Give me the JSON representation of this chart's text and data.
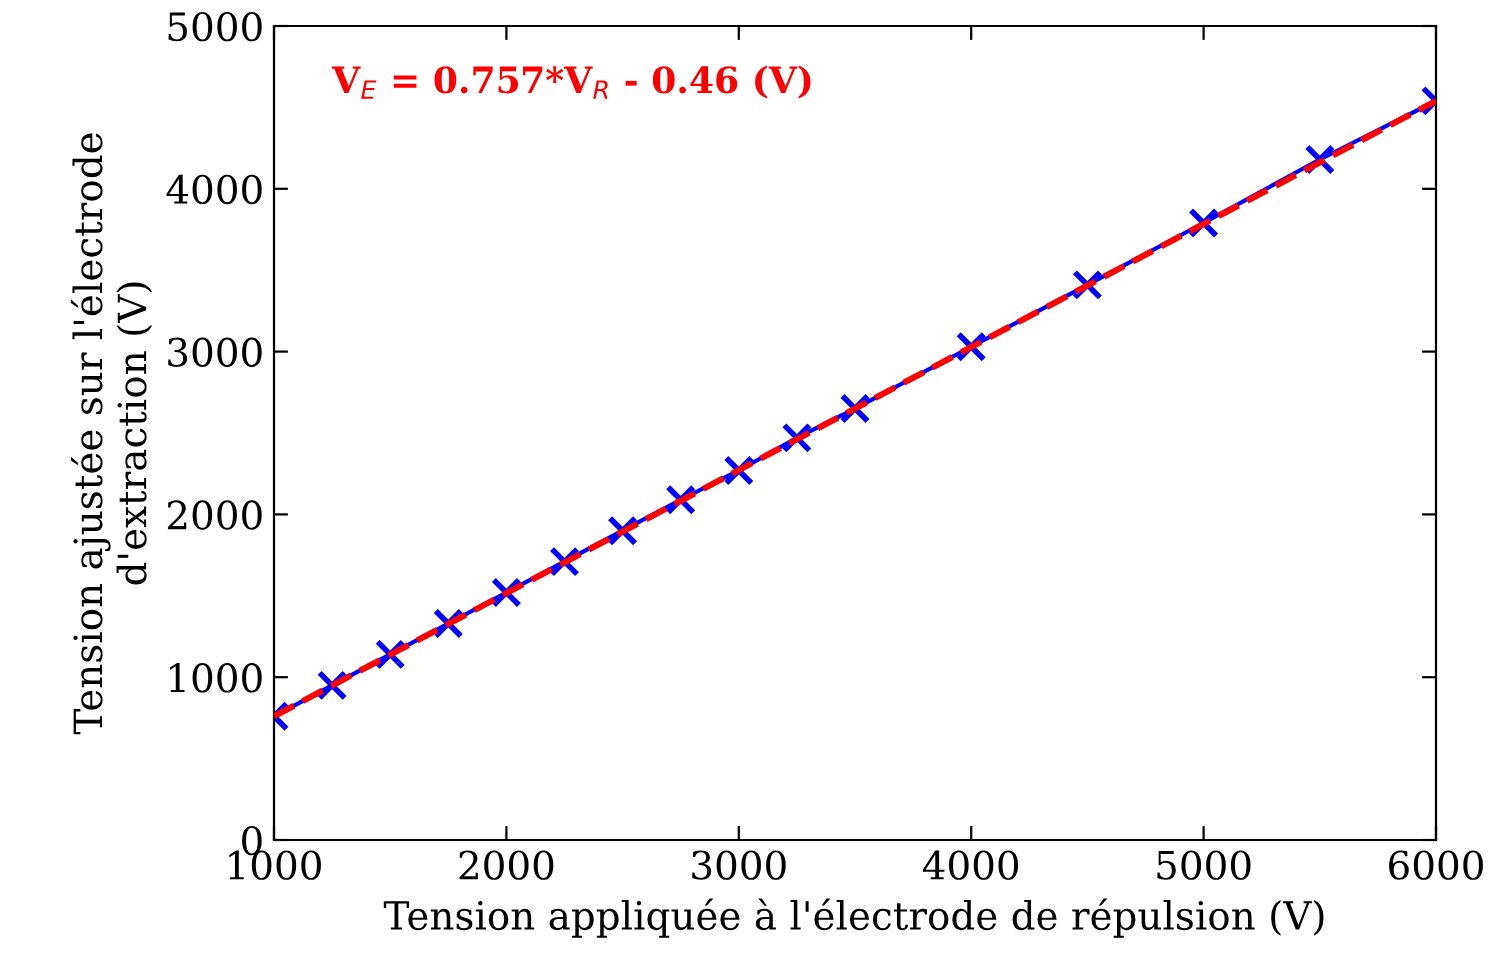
{
  "chart_data": {
    "type": "line",
    "xlabel": "Tension appliquée à l'électrode de répulsion (V)",
    "ylabel": "Tension ajustée sur l'électrode\nd'extraction (V)",
    "annotations": [
      "V$_{E}$ = 0.757*V$_{R}$ - 0.46 (V)"
    ],
    "x": [
      1000,
      1250,
      1500,
      1750,
      2000,
      2250,
      2500,
      2750,
      3000,
      3250,
      3500,
      4000,
      4500,
      5000,
      5500,
      6000
    ],
    "series": [
      {
        "color": "#0000ff",
        "marker": "cross",
        "line_style": "solid",
        "values": [
          760,
          950,
          1140,
          1330,
          1520,
          1710,
          1900,
          2090,
          2270,
          2470,
          2650,
          3030,
          3410,
          3790,
          4180,
          4540
        ]
      },
      {
        "type": "line",
        "x": [
          1000,
          6000
        ],
        "color": "#ff0000",
        "marker": "none",
        "line_style": "dashed",
        "values": [
          760,
          4540
        ]
      }
    ],
    "xlim": [
      1000,
      6000
    ],
    "xticks": [
      1000,
      2000,
      3000,
      4000,
      5000,
      6000
    ],
    "ylim": [
      0,
      5000
    ],
    "yticks": [
      0,
      1000,
      2000,
      3000,
      4000,
      5000
    ],
    "grid": false,
    "legend": false
  }
}
